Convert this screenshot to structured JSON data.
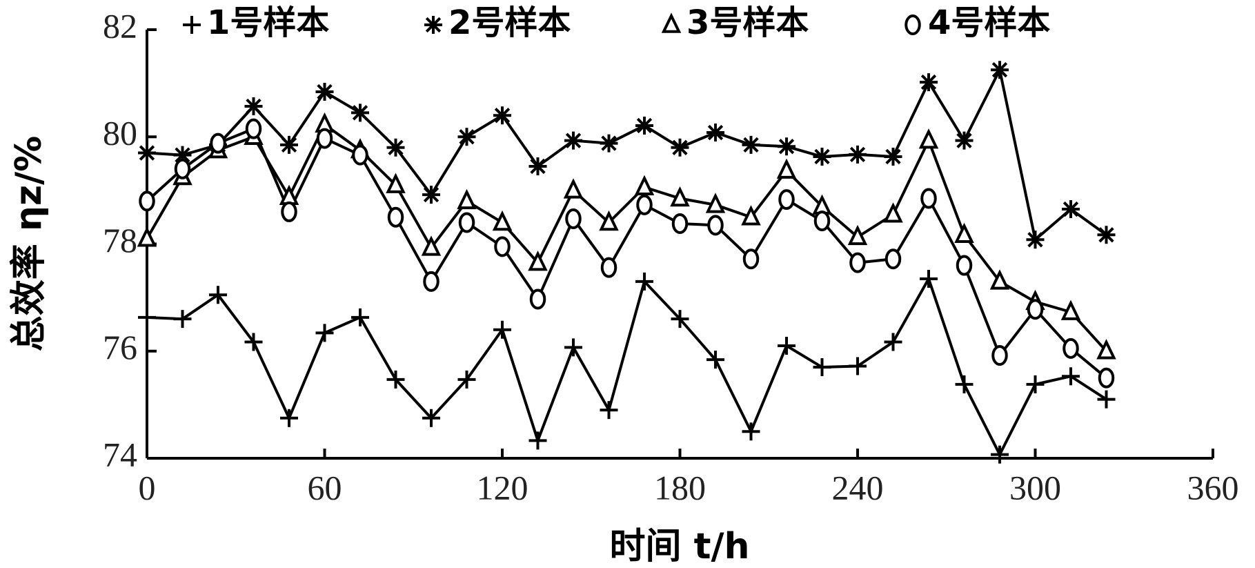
{
  "chart_data": {
    "type": "line",
    "x_label": "时间 t/h",
    "y_label": "总效率 ηz/%",
    "x": [
      0,
      12,
      24,
      36,
      48,
      60,
      72,
      84,
      96,
      108,
      120,
      132,
      144,
      156,
      168,
      180,
      192,
      204,
      216,
      228,
      240,
      252,
      264,
      276,
      288,
      300,
      312,
      324
    ],
    "xlim": [
      0,
      360
    ],
    "xticks": [
      0,
      60,
      120,
      180,
      240,
      300,
      360
    ],
    "ylim": [
      74,
      82
    ],
    "yticks": [
      74,
      76,
      78,
      80,
      82
    ],
    "grid": false,
    "legend": "top",
    "series": [
      {
        "name": "1号样本",
        "color": "#000000",
        "marker": "plus",
        "values": [
          76.63,
          76.6,
          77.05,
          76.17,
          74.75,
          76.34,
          76.63,
          75.47,
          74.75,
          75.47,
          76.4,
          74.33,
          76.07,
          74.9,
          77.3,
          76.6,
          75.84,
          74.5,
          76.1,
          75.7,
          75.72,
          76.17,
          77.35,
          75.38,
          74.07,
          75.38,
          75.53,
          75.1
        ]
      },
      {
        "name": "2号样本",
        "color": "#000000",
        "marker": "star",
        "values": [
          79.7,
          79.66,
          79.85,
          80.57,
          79.85,
          80.84,
          80.45,
          79.8,
          78.92,
          80.0,
          80.4,
          79.45,
          79.93,
          79.88,
          80.21,
          79.8,
          80.08,
          79.85,
          79.82,
          79.63,
          79.67,
          79.63,
          81.02,
          79.93,
          81.25,
          78.08,
          78.65,
          78.17
        ]
      },
      {
        "name": "3号样本",
        "color": "#000000",
        "marker": "triangle",
        "values": [
          78.1,
          79.25,
          79.75,
          80.0,
          78.88,
          80.23,
          79.75,
          79.1,
          77.93,
          78.8,
          78.4,
          77.65,
          79.0,
          78.4,
          79.06,
          78.85,
          78.73,
          78.5,
          79.37,
          78.7,
          78.13,
          78.55,
          79.93,
          78.17,
          77.3,
          76.92,
          76.73,
          76.0
        ]
      },
      {
        "name": "4号样本",
        "color": "#000000",
        "marker": "circle",
        "values": [
          78.8,
          79.4,
          79.88,
          80.15,
          78.6,
          79.97,
          79.66,
          78.5,
          77.3,
          78.4,
          77.95,
          76.97,
          78.47,
          77.56,
          78.73,
          78.38,
          78.35,
          77.72,
          78.83,
          78.43,
          77.65,
          77.72,
          78.85,
          77.6,
          75.92,
          76.78,
          76.05,
          75.5
        ]
      }
    ]
  }
}
